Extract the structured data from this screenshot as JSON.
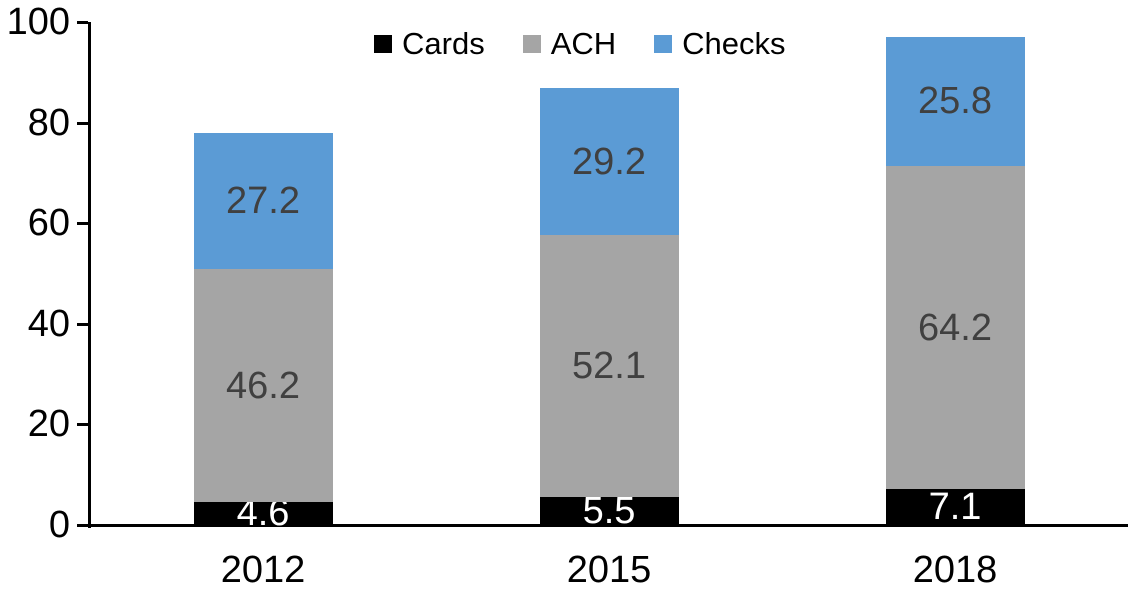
{
  "chart_data": {
    "type": "bar",
    "stacked": true,
    "title": "",
    "xlabel": "",
    "ylabel": "",
    "categories": [
      "2012",
      "2015",
      "2018"
    ],
    "series": [
      {
        "name": "Cards",
        "color": "#000000",
        "label_color": "#ffffff",
        "values": [
          4.6,
          5.5,
          7.1
        ]
      },
      {
        "name": "ACH",
        "color": "#a5a5a5",
        "label_color": "#404040",
        "values": [
          46.2,
          52.1,
          64.2
        ]
      },
      {
        "name": "Checks",
        "color": "#5b9bd5",
        "label_color": "#404040",
        "values": [
          27.2,
          29.2,
          25.8
        ]
      }
    ],
    "totals": [
      78.0,
      86.8,
      97.1
    ],
    "ylim": [
      0,
      100
    ],
    "yticks": [
      0,
      20,
      40,
      60,
      80,
      100
    ],
    "grid": false,
    "legend_position": "top",
    "axis_color": "#000000",
    "background_color": "#ffffff"
  }
}
